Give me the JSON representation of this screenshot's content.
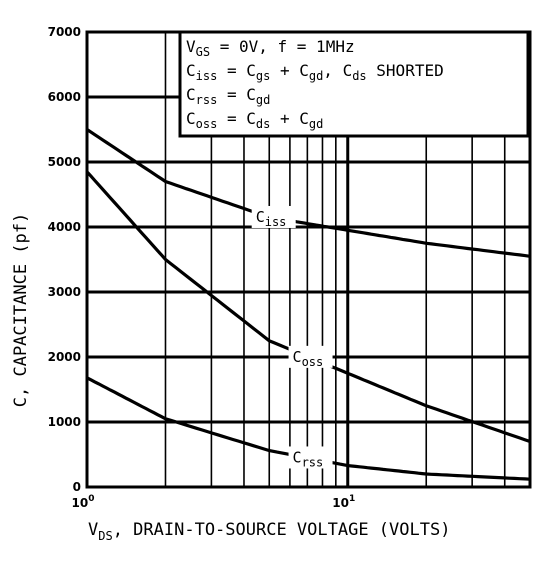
{
  "chart_data": {
    "type": "line",
    "xscale": "log",
    "xlim": [
      1,
      50
    ],
    "ylim": [
      0,
      7000
    ],
    "grid": true,
    "x_ticks": [
      {
        "value": 1,
        "base": "10",
        "exp": "0"
      },
      {
        "value": 10,
        "base": "10",
        "exp": "1"
      }
    ],
    "y_ticks": [
      "0",
      "1000",
      "2000",
      "3000",
      "4000",
      "5000",
      "6000",
      "7000"
    ],
    "y_tick_values": [
      0,
      1000,
      2000,
      3000,
      4000,
      5000,
      6000,
      7000
    ],
    "xlabel": {
      "main": "V",
      "sub": "DS",
      "rest": ", DRAIN-TO-SOURCE VOLTAGE (VOLTS)"
    },
    "ylabel": "C, CAPACITANCE (pf)",
    "legend_box_position": "top-right",
    "conditions": [
      [
        {
          "t": "V"
        },
        {
          "t": "GS",
          "sub": true
        },
        {
          "t": " = 0V, f = 1MHz"
        }
      ],
      [
        {
          "t": "C"
        },
        {
          "t": "iss",
          "sub": true
        },
        {
          "t": " = C"
        },
        {
          "t": "gs",
          "sub": true
        },
        {
          "t": " + C"
        },
        {
          "t": "gd",
          "sub": true
        },
        {
          "t": ", C"
        },
        {
          "t": "ds",
          "sub": true
        },
        {
          "t": " SHORTED"
        }
      ],
      [
        {
          "t": "C"
        },
        {
          "t": "rss",
          "sub": true
        },
        {
          "t": " = C"
        },
        {
          "t": "gd",
          "sub": true
        }
      ],
      [
        {
          "t": "C"
        },
        {
          "t": "oss",
          "sub": true
        },
        {
          "t": " = C"
        },
        {
          "t": "ds",
          "sub": true
        },
        {
          "t": " + C"
        },
        {
          "t": "gd",
          "sub": true
        }
      ]
    ],
    "series": [
      {
        "name": "iss",
        "x": [
          1,
          2,
          5,
          10,
          20,
          50
        ],
        "y": [
          5500,
          4700,
          4150,
          3950,
          3750,
          3550
        ]
      },
      {
        "name": "oss",
        "x": [
          1,
          2,
          5,
          10,
          20,
          50
        ],
        "y": [
          4850,
          3500,
          2250,
          1750,
          1250,
          700
        ]
      },
      {
        "name": "rss",
        "x": [
          1,
          2,
          5,
          10,
          20,
          50
        ],
        "y": [
          1680,
          1050,
          560,
          330,
          200,
          120
        ]
      }
    ]
  }
}
